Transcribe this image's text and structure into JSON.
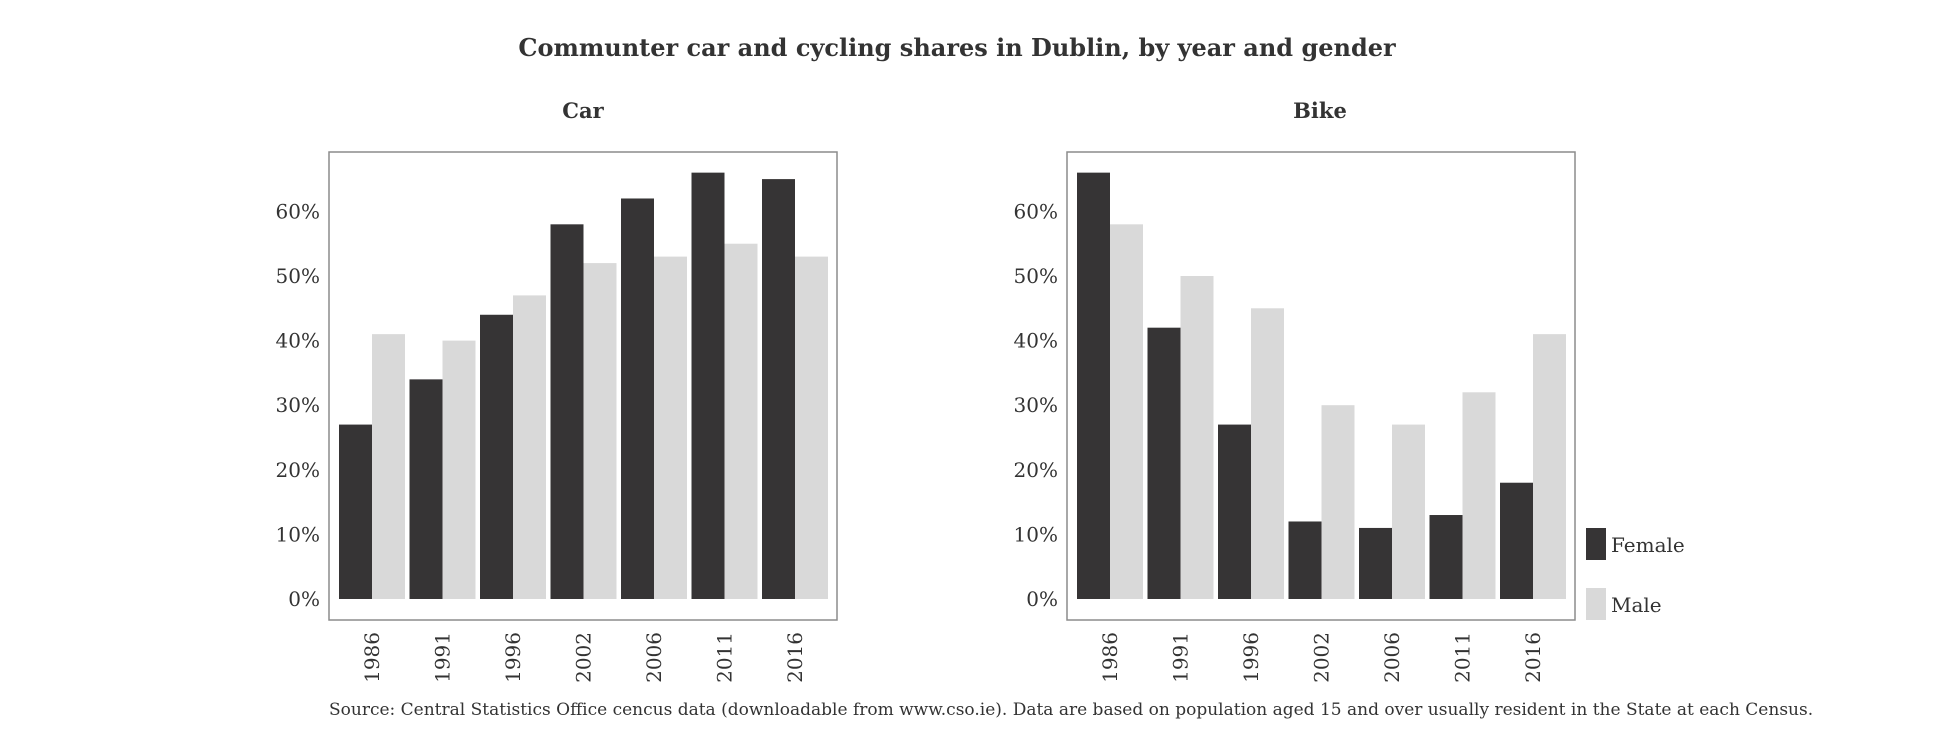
{
  "chart_data": {
    "type": "bar",
    "title": "Communter car and cycling shares in Dublin, by year and gender",
    "caption": "Source: Central Statistics Office cencus data (downloadable from www.cso.ie). Data are based on population aged 15 and over usually resident in the State at each Census.",
    "categories": [
      "1986",
      "1991",
      "1996",
      "2002",
      "2006",
      "2011",
      "2016"
    ],
    "ylim": [
      0,
      0.7
    ],
    "yticks": [
      0,
      0.1,
      0.2,
      0.3,
      0.4,
      0.5,
      0.6
    ],
    "ytick_labels": [
      "0%",
      "10%",
      "20%",
      "30%",
      "40%",
      "50%",
      "60%"
    ],
    "legend": {
      "position": "right",
      "entries": [
        {
          "name": "Female",
          "color": "#363435"
        },
        {
          "name": "Male",
          "color": "#d9d9d9"
        }
      ]
    },
    "panels": [
      {
        "title": "Car",
        "series": [
          {
            "name": "Female",
            "color": "#363435",
            "values": [
              0.27,
              0.34,
              0.44,
              0.58,
              0.62,
              0.66,
              0.65
            ]
          },
          {
            "name": "Male",
            "color": "#d9d9d9",
            "values": [
              0.41,
              0.4,
              0.47,
              0.52,
              0.53,
              0.55,
              0.53
            ]
          }
        ]
      },
      {
        "title": "Bike",
        "series": [
          {
            "name": "Female",
            "color": "#363435",
            "values": [
              0.66,
              0.42,
              0.27,
              0.12,
              0.11,
              0.13,
              0.18
            ]
          },
          {
            "name": "Male",
            "color": "#d9d9d9",
            "values": [
              0.58,
              0.5,
              0.45,
              0.3,
              0.27,
              0.32,
              0.41
            ]
          }
        ]
      }
    ]
  }
}
